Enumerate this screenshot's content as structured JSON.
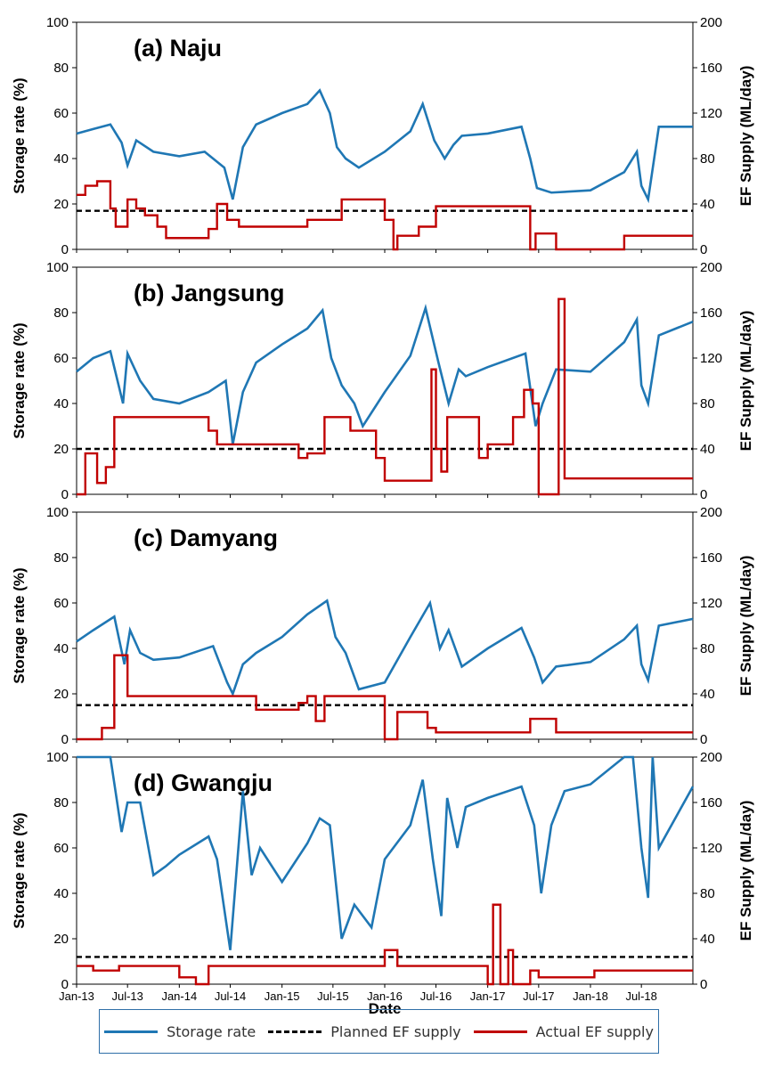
{
  "colors": {
    "storage": "#1f77b4",
    "planned": "#000000",
    "actual": "#c00000"
  },
  "legend": {
    "storage": "Storage rate",
    "planned": "Planned EF supply",
    "actual": "Actual EF supply"
  },
  "chart_data": [
    {
      "type": "line",
      "title": "(a) Naju",
      "ylabel": "Storage rate (%)",
      "y2label": "EF Supply (ML/day)",
      "xlabel": "",
      "ylim": [
        0,
        100
      ],
      "y2lim": [
        0,
        200
      ],
      "yticks": [
        0,
        20,
        40,
        60,
        80,
        100
      ],
      "y2ticks": [
        0,
        40,
        80,
        120,
        160,
        200
      ],
      "x_ticks": [
        "Jan-13",
        "Jul-13",
        "Jan-14",
        "Jul-14",
        "Jan-15",
        "Jul-15",
        "Jan-16",
        "Jul-16",
        "Jan-17",
        "Jul-17",
        "Jan-18",
        "Jul-18"
      ],
      "series": [
        {
          "name": "Storage rate",
          "axis": "left",
          "x": [
            "2013-01-01",
            "2013-03-01",
            "2013-05-01",
            "2013-06-10",
            "2013-07-01",
            "2013-08-01",
            "2013-10-01",
            "2014-01-01",
            "2014-04-01",
            "2014-06-10",
            "2014-07-10",
            "2014-08-15",
            "2014-10-01",
            "2015-01-01",
            "2015-04-01",
            "2015-05-15",
            "2015-06-20",
            "2015-07-15",
            "2015-08-15",
            "2015-10-01",
            "2016-01-01",
            "2016-04-01",
            "2016-05-15",
            "2016-06-25",
            "2016-08-01",
            "2016-09-01",
            "2016-10-01",
            "2017-01-01",
            "2017-05-01",
            "2017-06-01",
            "2017-06-25",
            "2017-08-15",
            "2018-01-01",
            "2018-05-01",
            "2018-06-15",
            "2018-07-01",
            "2018-07-25",
            "2018-09-01",
            "2018-12-31"
          ],
          "values": [
            51,
            53,
            55,
            47,
            37,
            48,
            43,
            41,
            43,
            36,
            22,
            45,
            55,
            60,
            64,
            70,
            60,
            45,
            40,
            36,
            43,
            52,
            64,
            48,
            40,
            46,
            50,
            51,
            54,
            40,
            27,
            25,
            26,
            34,
            43,
            28,
            22,
            54,
            54
          ]
        },
        {
          "name": "Planned EF supply",
          "axis": "left",
          "x": [
            "2013-01-01",
            "2018-12-31"
          ],
          "values": [
            17,
            17
          ]
        },
        {
          "name": "Actual EF supply",
          "axis": "left",
          "x": [
            "2013-01-01",
            "2013-02-01",
            "2013-03-15",
            "2013-05-01",
            "2013-05-20",
            "2013-07-01",
            "2013-08-01",
            "2013-09-01",
            "2013-10-15",
            "2013-11-15",
            "2014-04-15",
            "2014-05-15",
            "2014-06-20",
            "2014-08-01",
            "2015-04-01",
            "2015-08-01",
            "2016-01-01",
            "2016-02-01",
            "2016-02-15",
            "2016-05-01",
            "2016-07-01",
            "2017-06-01",
            "2017-06-20",
            "2017-09-01",
            "2018-05-01",
            "2018-12-31"
          ],
          "values": [
            24,
            28,
            30,
            18,
            10,
            22,
            18,
            15,
            10,
            5,
            9,
            20,
            13,
            10,
            13,
            22,
            13,
            0,
            6,
            10,
            19,
            0,
            7,
            0,
            6,
            6
          ]
        }
      ]
    },
    {
      "type": "line",
      "title": "(b) Jangsung",
      "ylabel": "Storage rate (%)",
      "y2label": "EF Supply (ML/day)",
      "xlabel": "",
      "ylim": [
        0,
        100
      ],
      "y2lim": [
        0,
        200
      ],
      "yticks": [
        0,
        20,
        40,
        60,
        80,
        100
      ],
      "y2ticks": [
        0,
        40,
        80,
        120,
        160,
        200
      ],
      "x_ticks": [
        "Jan-13",
        "Jul-13",
        "Jan-14",
        "Jul-14",
        "Jan-15",
        "Jul-15",
        "Jan-16",
        "Jul-16",
        "Jan-17",
        "Jul-17",
        "Jan-18",
        "Jul-18"
      ],
      "series": [
        {
          "name": "Storage rate",
          "axis": "left",
          "x": [
            "2013-01-01",
            "2013-03-01",
            "2013-05-01",
            "2013-06-15",
            "2013-07-01",
            "2013-08-15",
            "2013-10-01",
            "2014-01-01",
            "2014-04-15",
            "2014-06-15",
            "2014-07-10",
            "2014-08-15",
            "2014-10-01",
            "2015-01-01",
            "2015-04-01",
            "2015-05-25",
            "2015-06-25",
            "2015-08-01",
            "2015-09-15",
            "2015-10-15",
            "2016-01-01",
            "2016-04-01",
            "2016-05-25",
            "2016-07-10",
            "2016-08-15",
            "2016-09-20",
            "2016-10-15",
            "2017-01-01",
            "2017-05-15",
            "2017-06-20",
            "2017-07-15",
            "2017-09-01",
            "2018-01-01",
            "2018-05-01",
            "2018-06-15",
            "2018-07-01",
            "2018-07-25",
            "2018-09-01",
            "2018-12-31"
          ],
          "values": [
            54,
            60,
            63,
            40,
            62,
            50,
            42,
            40,
            45,
            50,
            22,
            45,
            58,
            66,
            73,
            81,
            60,
            48,
            40,
            30,
            45,
            61,
            82,
            58,
            40,
            55,
            52,
            56,
            62,
            30,
            40,
            55,
            54,
            67,
            77,
            48,
            40,
            70,
            76
          ]
        },
        {
          "name": "Planned EF supply",
          "axis": "left",
          "x": [
            "2013-01-01",
            "2018-12-31"
          ],
          "values": [
            20,
            20
          ]
        },
        {
          "name": "Actual EF supply",
          "axis": "left",
          "x": [
            "2013-01-01",
            "2013-02-01",
            "2013-03-15",
            "2013-04-15",
            "2013-05-15",
            "2014-04-15",
            "2014-05-15",
            "2015-03-01",
            "2015-04-01",
            "2015-06-01",
            "2015-09-01",
            "2015-12-01",
            "2016-01-01",
            "2016-06-01",
            "2016-06-15",
            "2016-07-01",
            "2016-07-20",
            "2016-08-10",
            "2016-09-01",
            "2016-10-01",
            "2016-12-01",
            "2017-01-01",
            "2017-04-01",
            "2017-05-10",
            "2017-06-10",
            "2017-07-01",
            "2017-09-10",
            "2017-10-01",
            "2018-12-31"
          ],
          "values": [
            0,
            18,
            5,
            12,
            34,
            28,
            22,
            16,
            18,
            34,
            28,
            16,
            6,
            6,
            55,
            20,
            10,
            34,
            34,
            34,
            16,
            22,
            34,
            46,
            40,
            0,
            86,
            7,
            7
          ]
        }
      ]
    },
    {
      "type": "line",
      "title": "(c) Damyang",
      "ylabel": "Storage rate (%)",
      "y2label": "EF Supply (ML/day)",
      "xlabel": "",
      "ylim": [
        0,
        100
      ],
      "y2lim": [
        0,
        200
      ],
      "yticks": [
        0,
        20,
        40,
        60,
        80,
        100
      ],
      "y2ticks": [
        0,
        40,
        80,
        120,
        160,
        200
      ],
      "x_ticks": [
        "Jan-13",
        "Jul-13",
        "Jan-14",
        "Jul-14",
        "Jan-15",
        "Jul-15",
        "Jan-16",
        "Jul-16",
        "Jan-17",
        "Jul-17",
        "Jan-18",
        "Jul-18"
      ],
      "series": [
        {
          "name": "Storage rate",
          "axis": "left",
          "x": [
            "2013-01-01",
            "2013-03-01",
            "2013-05-15",
            "2013-06-20",
            "2013-07-10",
            "2013-08-15",
            "2013-10-01",
            "2014-01-01",
            "2014-05-01",
            "2014-06-20",
            "2014-07-10",
            "2014-08-15",
            "2014-10-01",
            "2015-01-01",
            "2015-04-01",
            "2015-06-10",
            "2015-07-10",
            "2015-08-15",
            "2015-10-01",
            "2016-01-01",
            "2016-04-01",
            "2016-06-10",
            "2016-07-15",
            "2016-08-15",
            "2016-10-01",
            "2017-01-01",
            "2017-05-01",
            "2017-06-15",
            "2017-07-15",
            "2017-09-01",
            "2018-01-01",
            "2018-05-01",
            "2018-06-15",
            "2018-07-01",
            "2018-07-25",
            "2018-09-01",
            "2018-12-31"
          ],
          "values": [
            43,
            48,
            54,
            33,
            48,
            38,
            35,
            36,
            41,
            25,
            20,
            33,
            38,
            45,
            55,
            61,
            45,
            38,
            22,
            25,
            45,
            60,
            40,
            48,
            32,
            40,
            49,
            36,
            25,
            32,
            34,
            44,
            50,
            33,
            26,
            50,
            53
          ]
        },
        {
          "name": "Planned EF supply",
          "axis": "left",
          "x": [
            "2013-01-01",
            "2018-12-31"
          ],
          "values": [
            15,
            15
          ]
        },
        {
          "name": "Actual EF supply",
          "axis": "left",
          "x": [
            "2013-01-01",
            "2013-04-01",
            "2013-05-15",
            "2013-07-01",
            "2014-08-01",
            "2014-10-01",
            "2015-03-01",
            "2015-04-01",
            "2015-05-01",
            "2015-06-01",
            "2016-01-01",
            "2016-01-15",
            "2016-02-15",
            "2016-06-01",
            "2016-07-01",
            "2017-06-01",
            "2017-09-01",
            "2018-12-31"
          ],
          "values": [
            0,
            5,
            37,
            19,
            19,
            13,
            16,
            19,
            8,
            19,
            0,
            0,
            12,
            5,
            3,
            9,
            3,
            3
          ]
        }
      ]
    },
    {
      "type": "line",
      "title": "(d) Gwangju",
      "ylabel": "Storage rate (%)",
      "y2label": "EF Supply (ML/day)",
      "xlabel": "Date",
      "ylim": [
        0,
        100
      ],
      "y2lim": [
        0,
        200
      ],
      "yticks": [
        0,
        20,
        40,
        60,
        80,
        100
      ],
      "y2ticks": [
        0,
        40,
        80,
        120,
        160,
        200
      ],
      "x_ticks": [
        "Jan-13",
        "Jul-13",
        "Jan-14",
        "Jul-14",
        "Jan-15",
        "Jul-15",
        "Jan-16",
        "Jul-16",
        "Jan-17",
        "Jul-17",
        "Jan-18",
        "Jul-18"
      ],
      "series": [
        {
          "name": "Storage rate",
          "axis": "left",
          "x": [
            "2013-01-01",
            "2013-05-01",
            "2013-06-10",
            "2013-07-01",
            "2013-08-15",
            "2013-10-01",
            "2013-11-15",
            "2014-01-01",
            "2014-04-15",
            "2014-05-15",
            "2014-07-01",
            "2014-08-15",
            "2014-09-15",
            "2014-10-15",
            "2015-01-01",
            "2015-04-01",
            "2015-05-15",
            "2015-06-20",
            "2015-08-01",
            "2015-09-15",
            "2015-11-15",
            "2016-01-01",
            "2016-04-01",
            "2016-05-15",
            "2016-06-20",
            "2016-07-20",
            "2016-08-10",
            "2016-09-15",
            "2016-10-15",
            "2017-01-01",
            "2017-05-01",
            "2017-06-15",
            "2017-07-10",
            "2017-08-15",
            "2017-10-01",
            "2018-01-01",
            "2018-05-01",
            "2018-06-01",
            "2018-07-01",
            "2018-07-25",
            "2018-08-10",
            "2018-09-01",
            "2018-12-31"
          ],
          "values": [
            100,
            100,
            67,
            80,
            80,
            48,
            52,
            57,
            65,
            55,
            15,
            85,
            48,
            60,
            45,
            62,
            73,
            70,
            20,
            35,
            25,
            55,
            70,
            90,
            55,
            30,
            82,
            60,
            78,
            82,
            87,
            70,
            40,
            70,
            85,
            88,
            100,
            100,
            60,
            38,
            100,
            60,
            87
          ]
        },
        {
          "name": "Planned EF supply",
          "axis": "left",
          "x": [
            "2013-01-01",
            "2018-12-31"
          ],
          "values": [
            12,
            12
          ]
        },
        {
          "name": "Actual EF supply",
          "axis": "left",
          "x": [
            "2013-01-01",
            "2013-03-01",
            "2013-06-01",
            "2014-01-01",
            "2014-03-01",
            "2014-04-15",
            "2015-01-15",
            "2016-01-01",
            "2016-02-15",
            "2016-03-01",
            "2017-01-01",
            "2017-01-20",
            "2017-02-15",
            "2017-03-15",
            "2017-04-01",
            "2017-06-01",
            "2017-07-01",
            "2018-01-15",
            "2018-12-31"
          ],
          "values": [
            8,
            6,
            8,
            3,
            0,
            8,
            8,
            15,
            8,
            8,
            0,
            35,
            0,
            15,
            0,
            6,
            3,
            6,
            6
          ]
        }
      ]
    }
  ]
}
